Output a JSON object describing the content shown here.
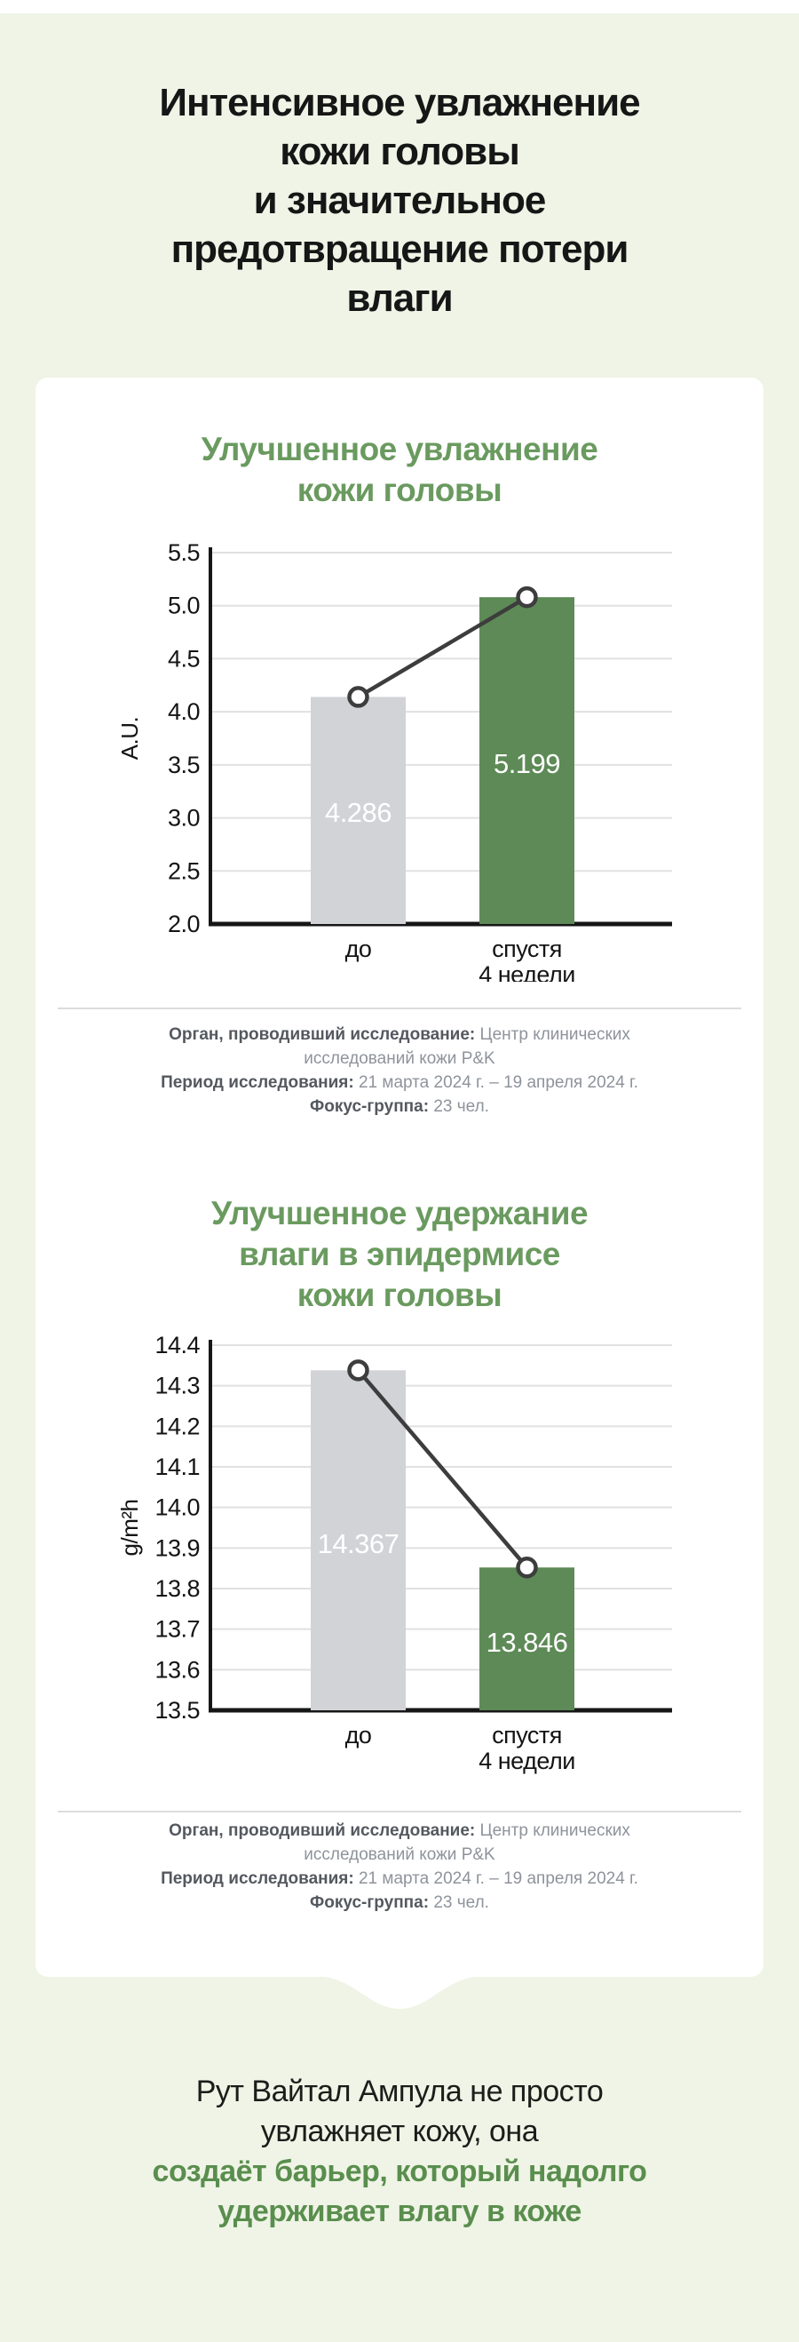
{
  "page": {
    "title": "Интенсивное увлажнение\nкожи головы\nи значительное\nпредотвращение потери\nвлаги"
  },
  "colors": {
    "background": "#eff4e6",
    "card": "#ffffff",
    "title_text": "#161616",
    "chart_title_green": "#6a9a5f",
    "bar_before_gray": "#d1d3d7",
    "bar_after_green": "#5d8a56",
    "gridline": "#e1e1e1",
    "axis": "#161616",
    "connector_line": "#3d3d3d",
    "bar_value_text": "#ffffff",
    "footer_label": "#54585f",
    "footer_value": "#8e939b",
    "quote_dark": "#1c1c1a",
    "quote_green": "#5a8e4e"
  },
  "chart_data": [
    {
      "type": "bar",
      "title": "Улучшенное увлажнение\nкожи головы",
      "ylabel": "A.U.",
      "categories": [
        [
          "до"
        ],
        [
          "спустя",
          "4 недели"
        ]
      ],
      "values": [
        4.286,
        5.199
      ],
      "value_labels": [
        "4.286",
        "5.199"
      ],
      "ylim": [
        2.0,
        5.5
      ],
      "ytick_step": 0.5,
      "grid": "on",
      "legend": "none",
      "overlay": "line-with-markers-on-bar-tops",
      "drawn_tops": [
        4.14,
        5.08
      ],
      "label_centers": [
        3.05,
        3.51
      ]
    },
    {
      "type": "bar",
      "title": "Улучшенное удержание\nвлаги в эпидермисе\nкожи головы",
      "ylabel": "g/m²h",
      "categories": [
        [
          "до"
        ],
        [
          "спустя",
          "4 недели"
        ]
      ],
      "values": [
        14.367,
        13.846
      ],
      "value_labels": [
        "14.367",
        "13.846"
      ],
      "ylim": [
        13.5,
        14.4
      ],
      "ytick_step": 0.1,
      "grid": "on",
      "legend": "none",
      "overlay": "line-with-markers-on-bar-tops",
      "drawn_tops": [
        14.338,
        13.852
      ],
      "label_centers": [
        13.911,
        13.668
      ]
    }
  ],
  "study_info": {
    "segments": [
      {
        "label": "Орган, проводивший исследование:",
        "value": "Центр клинических исследований кожи P&K"
      },
      {
        "label": "Период исследования:",
        "value": "21 марта 2024 г. – 19 апреля 2024 г."
      },
      {
        "label": "Фокус-группа:",
        "value": "23 чел."
      }
    ]
  },
  "quote": {
    "dark": "Рут Вайтал Ампула не просто\nувлажняет кожу, она",
    "green": "создаёт барьер, который надолго\nудерживает влагу в коже"
  }
}
